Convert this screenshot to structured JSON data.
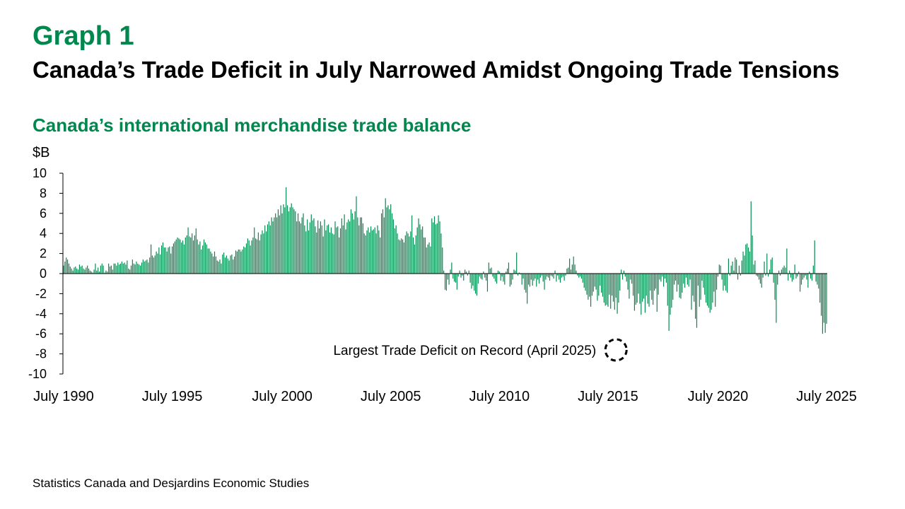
{
  "header": {
    "graph_label": "Graph 1",
    "title": "Canada’s Trade Deficit in July Narrowed Amidst Ongoing Trade Tensions",
    "subtitle": "Canada’s international merchandise trade balance",
    "unit": "$B"
  },
  "footer": {
    "source": "Statistics Canada and Desjardins Economic Studies"
  },
  "colors": {
    "bar": "#00874E",
    "title_green": "#00874E",
    "axis": "#000000"
  },
  "chart_data": {
    "type": "bar",
    "ylabel": "$B",
    "ylim": [
      -10,
      10
    ],
    "yticks": [
      10,
      8,
      6,
      4,
      2,
      0,
      -2,
      -4,
      -6,
      -8,
      -10
    ],
    "xtick_labels": [
      "July 1990",
      "July 1995",
      "July 2000",
      "July 2005",
      "July 2010",
      "July 2015",
      "July 2020",
      "July 2025"
    ],
    "x_start": "1990-07",
    "x_end": "2025-07",
    "frequency": "monthly",
    "annotation": {
      "text": "Largest Trade Deficit on Record (April 2025)",
      "date": "2025-04"
    },
    "values": [
      0.8,
      1.2,
      1.6,
      1.4,
      1.0,
      0.7,
      0.5,
      0.3,
      0.6,
      0.7,
      0.5,
      0.4,
      0.9,
      0.7,
      0.8,
      0.5,
      0.4,
      0.6,
      0.8,
      0.5,
      0.3,
      0.2,
      0.1,
      0.4,
      1.0,
      0.3,
      0.6,
      0.2,
      0.8,
      1.0,
      0.8,
      0.1,
      0.3,
      0.2,
      1.0,
      0.7,
      0.8,
      0.4,
      1.0,
      1.0,
      0.8,
      1.1,
      0.9,
      1.0,
      1.2,
      1.0,
      1.1,
      0.9,
      1.3,
      0.5,
      0.4,
      0.8,
      1.4,
      1.0,
      0.9,
      1.2,
      1.0,
      0.9,
      0.8,
      1.1,
      1.4,
      1.2,
      1.3,
      1.4,
      1.1,
      1.6,
      2.9,
      1.8,
      1.6,
      1.8,
      2.2,
      2.0,
      2.6,
      1.9,
      2.8,
      3.1,
      2.6,
      2.6,
      2.2,
      2.6,
      2.7,
      2.0,
      2.7,
      3.0,
      3.2,
      3.4,
      3.6,
      3.5,
      3.4,
      3.1,
      3.3,
      2.9,
      3.6,
      3.8,
      4.6,
      3.7,
      3.6,
      4.0,
      3.3,
      3.8,
      4.5,
      3.4,
      2.9,
      3.2,
      2.4,
      2.8,
      3.4,
      3.1,
      2.9,
      2.5,
      2.5,
      2.2,
      2.0,
      1.7,
      2.2,
      1.7,
      1.3,
      1.2,
      1.4,
      1.0,
      1.9,
      2.1,
      1.6,
      1.8,
      1.5,
      1.3,
      1.8,
      1.9,
      1.4,
      1.7,
      2.3,
      2.2,
      2.4,
      2.4,
      2.2,
      2.4,
      2.7,
      2.6,
      3.0,
      3.5,
      3.3,
      2.8,
      3.3,
      3.6,
      4.6,
      3.5,
      3.4,
      4.1,
      3.3,
      3.9,
      4.3,
      4.0,
      4.8,
      4.2,
      4.9,
      5.2,
      4.8,
      5.6,
      5.2,
      5.6,
      6.0,
      5.6,
      6.4,
      5.8,
      6.8,
      6.0,
      6.9,
      6.6,
      8.6,
      6.8,
      6.2,
      6.6,
      7.0,
      6.6,
      6.4,
      6.2,
      5.2,
      6.0,
      5.2,
      5.0,
      5.6,
      6.0,
      4.8,
      4.2,
      5.4,
      4.3,
      5.1,
      5.9,
      5.3,
      5.5,
      4.7,
      4.1,
      5.3,
      4.5,
      5.2,
      4.8,
      3.7,
      5.4,
      4.3,
      4.8,
      4.9,
      4.1,
      4.6,
      4.0,
      3.9,
      5.2,
      4.6,
      4.7,
      3.6,
      4.5,
      5.5,
      4.8,
      5.9,
      4.4,
      5.1,
      5.4,
      5.2,
      6.4,
      6.0,
      5.4,
      6.2,
      7.7,
      5.6,
      4.8,
      5.6,
      5.6,
      5.0,
      4.0,
      3.8,
      4.3,
      4.6,
      4.1,
      4.7,
      4.3,
      4.4,
      4.6,
      4.0,
      4.8,
      4.3,
      3.6,
      6.0,
      6.4,
      5.6,
      7.5,
      6.6,
      6.8,
      6.4,
      6.9,
      6.0,
      5.4,
      4.5,
      4.8,
      4.0,
      3.4,
      3.3,
      3.5,
      3.4,
      3.1,
      3.8,
      4.2,
      4.0,
      3.7,
      4.2,
      5.8,
      3.6,
      2.9,
      3.8,
      4.6,
      5.5,
      4.9,
      4.4,
      4.7,
      3.6,
      3.6,
      2.6,
      2.9,
      3.1,
      2.7,
      5.5,
      5.1,
      5.7,
      4.9,
      5.0,
      5.8,
      5.2,
      4.0,
      2.6,
      0.3,
      -1.6,
      -1.7,
      -0.6,
      -1.1,
      0.4,
      1.1,
      -0.5,
      -0.8,
      -0.9,
      -1.6,
      -0.3,
      0.3,
      -0.4,
      -0.2,
      -0.7,
      0.4,
      0.2,
      -0.2,
      0.3,
      -0.9,
      -1.5,
      -1.2,
      -1.7,
      -2.0,
      -2.2,
      -1.0,
      -0.3,
      -0.5,
      -0.6,
      0.2,
      -0.4,
      -0.7,
      -1.8,
      1.1,
      0.5,
      0.6,
      -0.3,
      -0.5,
      -0.8,
      -1.0,
      0.3,
      0.2,
      -0.7,
      -0.3,
      -0.8,
      -1.1,
      0.2,
      0.5,
      1.1,
      -1.3,
      -1.1,
      -0.6,
      0.4,
      0.3,
      2.1,
      -0.2,
      0.1,
      -0.1,
      -1.1,
      -0.5,
      -1.6,
      -1.9,
      -3.0,
      -1.1,
      -1.3,
      -0.6,
      -1.2,
      -0.7,
      -0.5,
      -1.3,
      -0.6,
      -1.0,
      -0.4,
      -0.2,
      -0.8,
      -1.6,
      -0.6,
      -0.3,
      -0.4,
      -0.7,
      -0.2,
      -0.3,
      -0.5,
      0.3,
      -0.8,
      -0.2,
      -0.6,
      -0.9,
      -0.4,
      -0.3,
      -0.7,
      -0.2,
      0.5,
      0.6,
      1.5,
      0.4,
      0.9,
      1.7,
      0.9,
      0.3,
      -0.2,
      -0.4,
      -0.3,
      -0.5,
      -0.9,
      -1.4,
      -1.7,
      -2.1,
      -2.6,
      -2.3,
      -3.3,
      -2.2,
      -1.8,
      -1.3,
      -1.6,
      -2.7,
      -2.2,
      -1.2,
      -1.9,
      -2.3,
      -2.9,
      -3.2,
      -3.1,
      -3.3,
      -2.1,
      -3.5,
      -2.2,
      -2.8,
      -3.6,
      -2.4,
      -4.0,
      -2.9,
      -1.7,
      0.4,
      -0.6,
      0.3,
      -0.3,
      -0.8,
      -1.6,
      -2.5,
      -0.6,
      -1.0,
      -2.2,
      -3.7,
      -3.1,
      -2.9,
      -2.0,
      -3.0,
      -4.1,
      -2.8,
      -2.5,
      -3.9,
      -2.2,
      -3.0,
      -3.3,
      -1.7,
      -2.6,
      -3.1,
      -1.7,
      -1.5,
      -3.8,
      -2.1,
      -0.6,
      -0.8,
      -0.3,
      -1.3,
      -0.5,
      -0.9,
      -3.2,
      -5.7,
      -4.1,
      -3.4,
      -2.6,
      -1.1,
      -0.7,
      -1.8,
      -1.1,
      -2.4,
      -2.5,
      -1.9,
      -1.0,
      -1.4,
      -0.4,
      -1.1,
      -1.3,
      -0.6,
      -3.6,
      -2.2,
      -2.8,
      -4.5,
      -5.4,
      -1.2,
      -3.3,
      -2.6,
      -0.7,
      -1.4,
      -2.1,
      -2.9,
      -3.2,
      -3.4,
      -3.9,
      -3.6,
      -2.9,
      -1.8,
      -3.3,
      -1.6,
      -0.3,
      0.9,
      0.8,
      -0.6,
      -1.7,
      -1.2,
      -1.7,
      -1.9,
      1.5,
      -0.2,
      0.8,
      1.2,
      0.3,
      1.6,
      1.4,
      -0.6,
      0.8,
      -0.2,
      1.3,
      2.2,
      1.8,
      2.9,
      3.0,
      2.6,
      2.2,
      7.2,
      3.8,
      0.9,
      1.3,
      -0.2,
      -0.3,
      -0.6,
      -1.0,
      -1.4,
      -0.4,
      1.2,
      -0.2,
      2.0,
      -0.3,
      0.4,
      1.4,
      1.6,
      -0.9,
      -2.6,
      -4.9,
      -1.1,
      0.3,
      -0.2,
      0.4,
      0.6,
      0.8,
      0.6,
      2.5,
      -0.7,
      0.3,
      -0.4,
      -0.8,
      -0.6,
      0.9,
      -0.5,
      -0.3,
      0.2,
      -1.8,
      -1.1,
      -0.6,
      -0.4,
      -0.2,
      -0.6,
      -1.4,
      0.2,
      -0.5,
      -0.7,
      0.8,
      3.3,
      -0.8,
      -1.1,
      -1.5,
      -2.9,
      -4.2,
      -6.0,
      -4.9,
      -5.9,
      -5.0
    ]
  }
}
